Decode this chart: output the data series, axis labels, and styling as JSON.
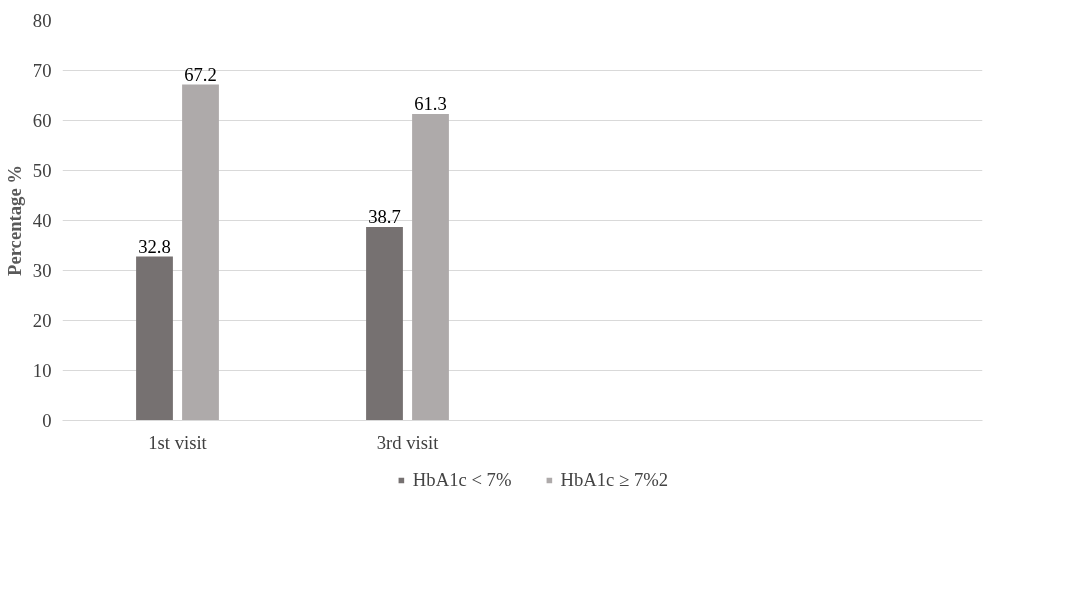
{
  "chart_data": {
    "type": "bar",
    "categories": [
      "1st visit",
      "3rd visit",
      null,
      null
    ],
    "ylabel": "Percentage %",
    "series": [
      {
        "name": "HbA1c < 7%",
        "color": "#767171",
        "values": [
          32.8,
          38.7,
          null,
          null
        ]
      },
      {
        "name": "HbA1c ≥ 7%2",
        "color": "#aeaaaa",
        "values": [
          67.2,
          61.3,
          null,
          null
        ]
      }
    ],
    "ylim": [
      0,
      80
    ],
    "yticks": [
      0,
      10,
      20,
      30,
      40,
      50,
      60,
      70,
      80
    ],
    "grid": "y",
    "legend": "bottom",
    "data_labels": true
  }
}
